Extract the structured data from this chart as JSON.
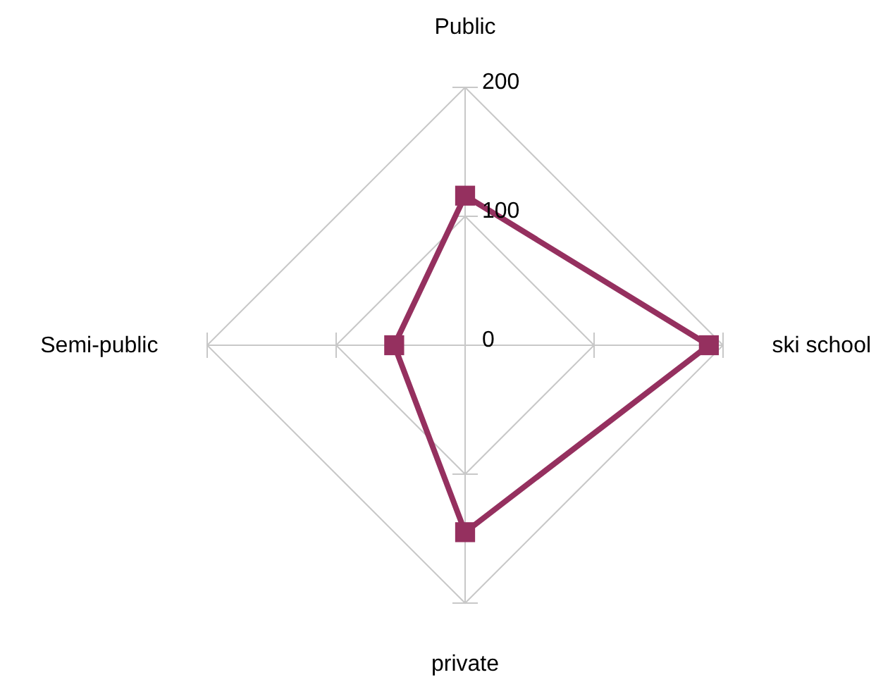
{
  "chart_data": {
    "type": "radar",
    "categories": [
      "Public",
      "ski school",
      "private",
      "Semi-public"
    ],
    "series": [
      {
        "color": "#95305f",
        "values": [
          116,
          189,
          145,
          55
        ]
      }
    ],
    "ylim": [
      0,
      200
    ],
    "yticks": [
      0,
      100,
      200
    ],
    "grid": true,
    "marker": "square"
  }
}
